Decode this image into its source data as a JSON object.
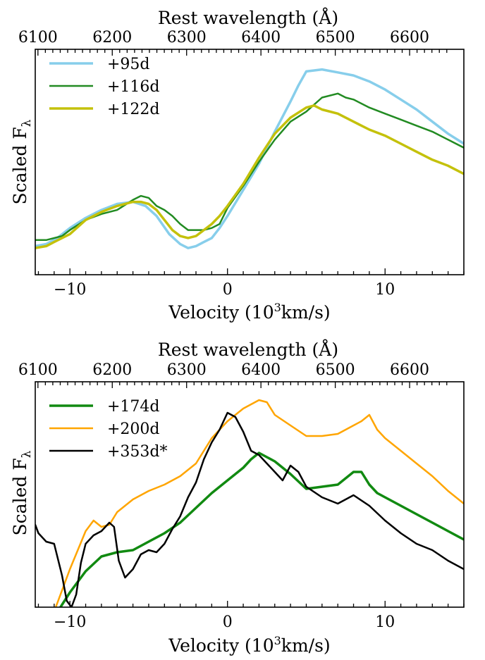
{
  "chart_data": [
    {
      "type": "line",
      "top_axis": {
        "label": "Rest wavelength (Å)",
        "ticks": [
          "6100",
          "6200",
          "6300",
          "6400",
          "6500",
          "6600"
        ],
        "tick_values": [
          6100,
          6200,
          6300,
          6400,
          6500,
          6600
        ]
      },
      "bottom_axis": {
        "label": "Velocity (10³km/s)",
        "label_main": "Velocity (10",
        "label_sup": "3",
        "label_tail": "km/s)",
        "ticks": [
          "−10",
          "0",
          "10"
        ],
        "tick_values": [
          -10,
          0,
          10
        ],
        "xlim": [
          -12.2,
          15
        ]
      },
      "y_axis": {
        "label": "Scaled F",
        "label_sub": "λ",
        "ylim": [
          0,
          1.0
        ]
      },
      "legend": "top-left",
      "series": [
        {
          "name": "+95d",
          "color": "#87ceeb",
          "width": 3.5,
          "points": [
            [
              -12.2,
              0.09
            ],
            [
              -11.5,
              0.1
            ],
            [
              -10.8,
              0.13
            ],
            [
              -10,
              0.18
            ],
            [
              -9,
              0.23
            ],
            [
              -8,
              0.27
            ],
            [
              -7,
              0.3
            ],
            [
              -6,
              0.31
            ],
            [
              -5.2,
              0.29
            ],
            [
              -4.5,
              0.24
            ],
            [
              -3.7,
              0.15
            ],
            [
              -3,
              0.1
            ],
            [
              -2.5,
              0.08
            ],
            [
              -2,
              0.09
            ],
            [
              -1.5,
              0.11
            ],
            [
              -1,
              0.13
            ],
            [
              -0.5,
              0.18
            ],
            [
              0,
              0.24
            ],
            [
              1,
              0.37
            ],
            [
              2,
              0.5
            ],
            [
              3,
              0.66
            ],
            [
              4,
              0.81
            ],
            [
              4.5,
              0.89
            ],
            [
              5,
              0.96
            ],
            [
              6,
              0.97
            ],
            [
              7,
              0.955
            ],
            [
              8,
              0.94
            ],
            [
              9,
              0.91
            ],
            [
              10,
              0.87
            ],
            [
              11,
              0.82
            ],
            [
              12,
              0.77
            ],
            [
              13,
              0.71
            ],
            [
              14,
              0.65
            ],
            [
              15,
              0.6
            ]
          ]
        },
        {
          "name": "+116d",
          "color": "#228b22",
          "width": 2.5,
          "points": [
            [
              -12.2,
              0.12
            ],
            [
              -11.5,
              0.12
            ],
            [
              -11,
              0.13
            ],
            [
              -10.5,
              0.14
            ],
            [
              -10,
              0.17
            ],
            [
              -9,
              0.22
            ],
            [
              -8,
              0.25
            ],
            [
              -7,
              0.27
            ],
            [
              -6,
              0.32
            ],
            [
              -5.5,
              0.34
            ],
            [
              -5,
              0.33
            ],
            [
              -4.5,
              0.29
            ],
            [
              -4,
              0.27
            ],
            [
              -3.5,
              0.24
            ],
            [
              -3,
              0.2
            ],
            [
              -2.5,
              0.17
            ],
            [
              -2,
              0.17
            ],
            [
              -1.5,
              0.17
            ],
            [
              -1,
              0.18
            ],
            [
              -0.5,
              0.2
            ],
            [
              0,
              0.28
            ],
            [
              1,
              0.39
            ],
            [
              2,
              0.51
            ],
            [
              3,
              0.62
            ],
            [
              4,
              0.71
            ],
            [
              5,
              0.76
            ],
            [
              6,
              0.83
            ],
            [
              7,
              0.85
            ],
            [
              7.5,
              0.83
            ],
            [
              8,
              0.82
            ],
            [
              9,
              0.78
            ],
            [
              10,
              0.75
            ],
            [
              11,
              0.72
            ],
            [
              12,
              0.69
            ],
            [
              13,
              0.66
            ],
            [
              14,
              0.62
            ],
            [
              15,
              0.58
            ]
          ]
        },
        {
          "name": "+122d",
          "color": "#c4c10b",
          "width": 3.5,
          "points": [
            [
              -12.2,
              0.08
            ],
            [
              -11.5,
              0.09
            ],
            [
              -11,
              0.11
            ],
            [
              -10,
              0.15
            ],
            [
              -9,
              0.22
            ],
            [
              -8,
              0.26
            ],
            [
              -7,
              0.29
            ],
            [
              -6,
              0.31
            ],
            [
              -5.5,
              0.31
            ],
            [
              -5,
              0.3
            ],
            [
              -4.5,
              0.27
            ],
            [
              -4,
              0.22
            ],
            [
              -3.5,
              0.17
            ],
            [
              -3,
              0.14
            ],
            [
              -2.5,
              0.13
            ],
            [
              -2,
              0.14
            ],
            [
              -1.5,
              0.17
            ],
            [
              -1,
              0.2
            ],
            [
              -0.5,
              0.24
            ],
            [
              0,
              0.29
            ],
            [
              1,
              0.4
            ],
            [
              2,
              0.53
            ],
            [
              3,
              0.65
            ],
            [
              4,
              0.73
            ],
            [
              5,
              0.78
            ],
            [
              5.5,
              0.79
            ],
            [
              6,
              0.77
            ],
            [
              7,
              0.75
            ],
            [
              8,
              0.71
            ],
            [
              9,
              0.67
            ],
            [
              10,
              0.64
            ],
            [
              11,
              0.6
            ],
            [
              12,
              0.56
            ],
            [
              13,
              0.52
            ],
            [
              14,
              0.49
            ],
            [
              15,
              0.45
            ]
          ]
        }
      ]
    },
    {
      "type": "line",
      "top_axis": {
        "label": "Rest wavelength (Å)",
        "ticks": [
          "6100",
          "6200",
          "6300",
          "6400",
          "6500",
          "6600"
        ],
        "tick_values": [
          6100,
          6200,
          6300,
          6400,
          6500,
          6600
        ]
      },
      "bottom_axis": {
        "label": "Velocity (10³km/s)",
        "label_main": "Velocity (10",
        "label_sup": "3",
        "label_tail": "km/s)",
        "ticks": [
          "−10",
          "0",
          "10"
        ],
        "tick_values": [
          -10,
          0,
          10
        ],
        "xlim": [
          -12.2,
          15
        ]
      },
      "y_axis": {
        "label": "Scaled F",
        "label_sub": "λ",
        "ylim": [
          0,
          1.0
        ]
      },
      "legend": "top-left",
      "series": [
        {
          "name": "+174d",
          "color": "#118a11",
          "width": 3.5,
          "points": [
            [
              -10.6,
              0.0
            ],
            [
              -10,
              0.07
            ],
            [
              -9,
              0.17
            ],
            [
              -8,
              0.24
            ],
            [
              -7,
              0.26
            ],
            [
              -6,
              0.27
            ],
            [
              -5,
              0.31
            ],
            [
              -4,
              0.35
            ],
            [
              -3,
              0.4
            ],
            [
              -2,
              0.47
            ],
            [
              -1,
              0.54
            ],
            [
              0,
              0.6
            ],
            [
              1,
              0.66
            ],
            [
              1.5,
              0.7
            ],
            [
              2,
              0.73
            ],
            [
              3,
              0.69
            ],
            [
              4,
              0.63
            ],
            [
              5,
              0.56
            ],
            [
              6,
              0.57
            ],
            [
              7,
              0.58
            ],
            [
              8,
              0.64
            ],
            [
              8.5,
              0.64
            ],
            [
              9,
              0.58
            ],
            [
              9.5,
              0.54
            ],
            [
              10,
              0.52
            ],
            [
              11,
              0.48
            ],
            [
              12,
              0.44
            ],
            [
              13,
              0.4
            ],
            [
              14,
              0.36
            ],
            [
              15,
              0.32
            ]
          ]
        },
        {
          "name": "+200d",
          "color": "#ffa500",
          "width": 2.5,
          "points": [
            [
              -10.9,
              0.0
            ],
            [
              -10,
              0.18
            ],
            [
              -9,
              0.36
            ],
            [
              -8.5,
              0.41
            ],
            [
              -8,
              0.38
            ],
            [
              -7.5,
              0.39
            ],
            [
              -7,
              0.45
            ],
            [
              -6,
              0.51
            ],
            [
              -5,
              0.55
            ],
            [
              -4,
              0.58
            ],
            [
              -3,
              0.62
            ],
            [
              -2,
              0.68
            ],
            [
              -1.5,
              0.74
            ],
            [
              -1,
              0.8
            ],
            [
              -0.5,
              0.84
            ],
            [
              0,
              0.88
            ],
            [
              1,
              0.94
            ],
            [
              2,
              0.98
            ],
            [
              2.5,
              0.97
            ],
            [
              3,
              0.91
            ],
            [
              4,
              0.86
            ],
            [
              5,
              0.81
            ],
            [
              6,
              0.81
            ],
            [
              7,
              0.82
            ],
            [
              8,
              0.86
            ],
            [
              8.5,
              0.88
            ],
            [
              9,
              0.91
            ],
            [
              9.5,
              0.84
            ],
            [
              10,
              0.8
            ],
            [
              11,
              0.74
            ],
            [
              12,
              0.68
            ],
            [
              13,
              0.62
            ],
            [
              14,
              0.55
            ],
            [
              15,
              0.49
            ]
          ]
        },
        {
          "name": "+353d*",
          "color": "#000000",
          "width": 2.5,
          "points": [
            [
              -12.2,
              0.39
            ],
            [
              -12,
              0.35
            ],
            [
              -11.5,
              0.31
            ],
            [
              -11,
              0.3
            ],
            [
              -10.5,
              0.15
            ],
            [
              -10.2,
              0.03
            ],
            [
              -9.9,
              0.0
            ],
            [
              -9.6,
              0.06
            ],
            [
              -9.3,
              0.21
            ],
            [
              -9,
              0.3
            ],
            [
              -8.5,
              0.34
            ],
            [
              -8,
              0.36
            ],
            [
              -7.5,
              0.4
            ],
            [
              -7.2,
              0.38
            ],
            [
              -6.9,
              0.22
            ],
            [
              -6.5,
              0.14
            ],
            [
              -6,
              0.18
            ],
            [
              -5.5,
              0.25
            ],
            [
              -5,
              0.27
            ],
            [
              -4.5,
              0.26
            ],
            [
              -4,
              0.3
            ],
            [
              -3.5,
              0.37
            ],
            [
              -3,
              0.43
            ],
            [
              -2.5,
              0.52
            ],
            [
              -2,
              0.59
            ],
            [
              -1.5,
              0.7
            ],
            [
              -1,
              0.78
            ],
            [
              -0.5,
              0.84
            ],
            [
              0,
              0.92
            ],
            [
              0.5,
              0.9
            ],
            [
              1,
              0.83
            ],
            [
              1.5,
              0.74
            ],
            [
              2,
              0.72
            ],
            [
              2.5,
              0.68
            ],
            [
              3,
              0.64
            ],
            [
              3.5,
              0.6
            ],
            [
              4,
              0.67
            ],
            [
              4.5,
              0.64
            ],
            [
              5,
              0.57
            ],
            [
              6,
              0.52
            ],
            [
              7,
              0.49
            ],
            [
              8,
              0.53
            ],
            [
              9,
              0.48
            ],
            [
              10,
              0.41
            ],
            [
              11,
              0.35
            ],
            [
              12,
              0.3
            ],
            [
              13,
              0.27
            ],
            [
              14,
              0.22
            ],
            [
              15,
              0.18
            ]
          ]
        }
      ]
    }
  ]
}
